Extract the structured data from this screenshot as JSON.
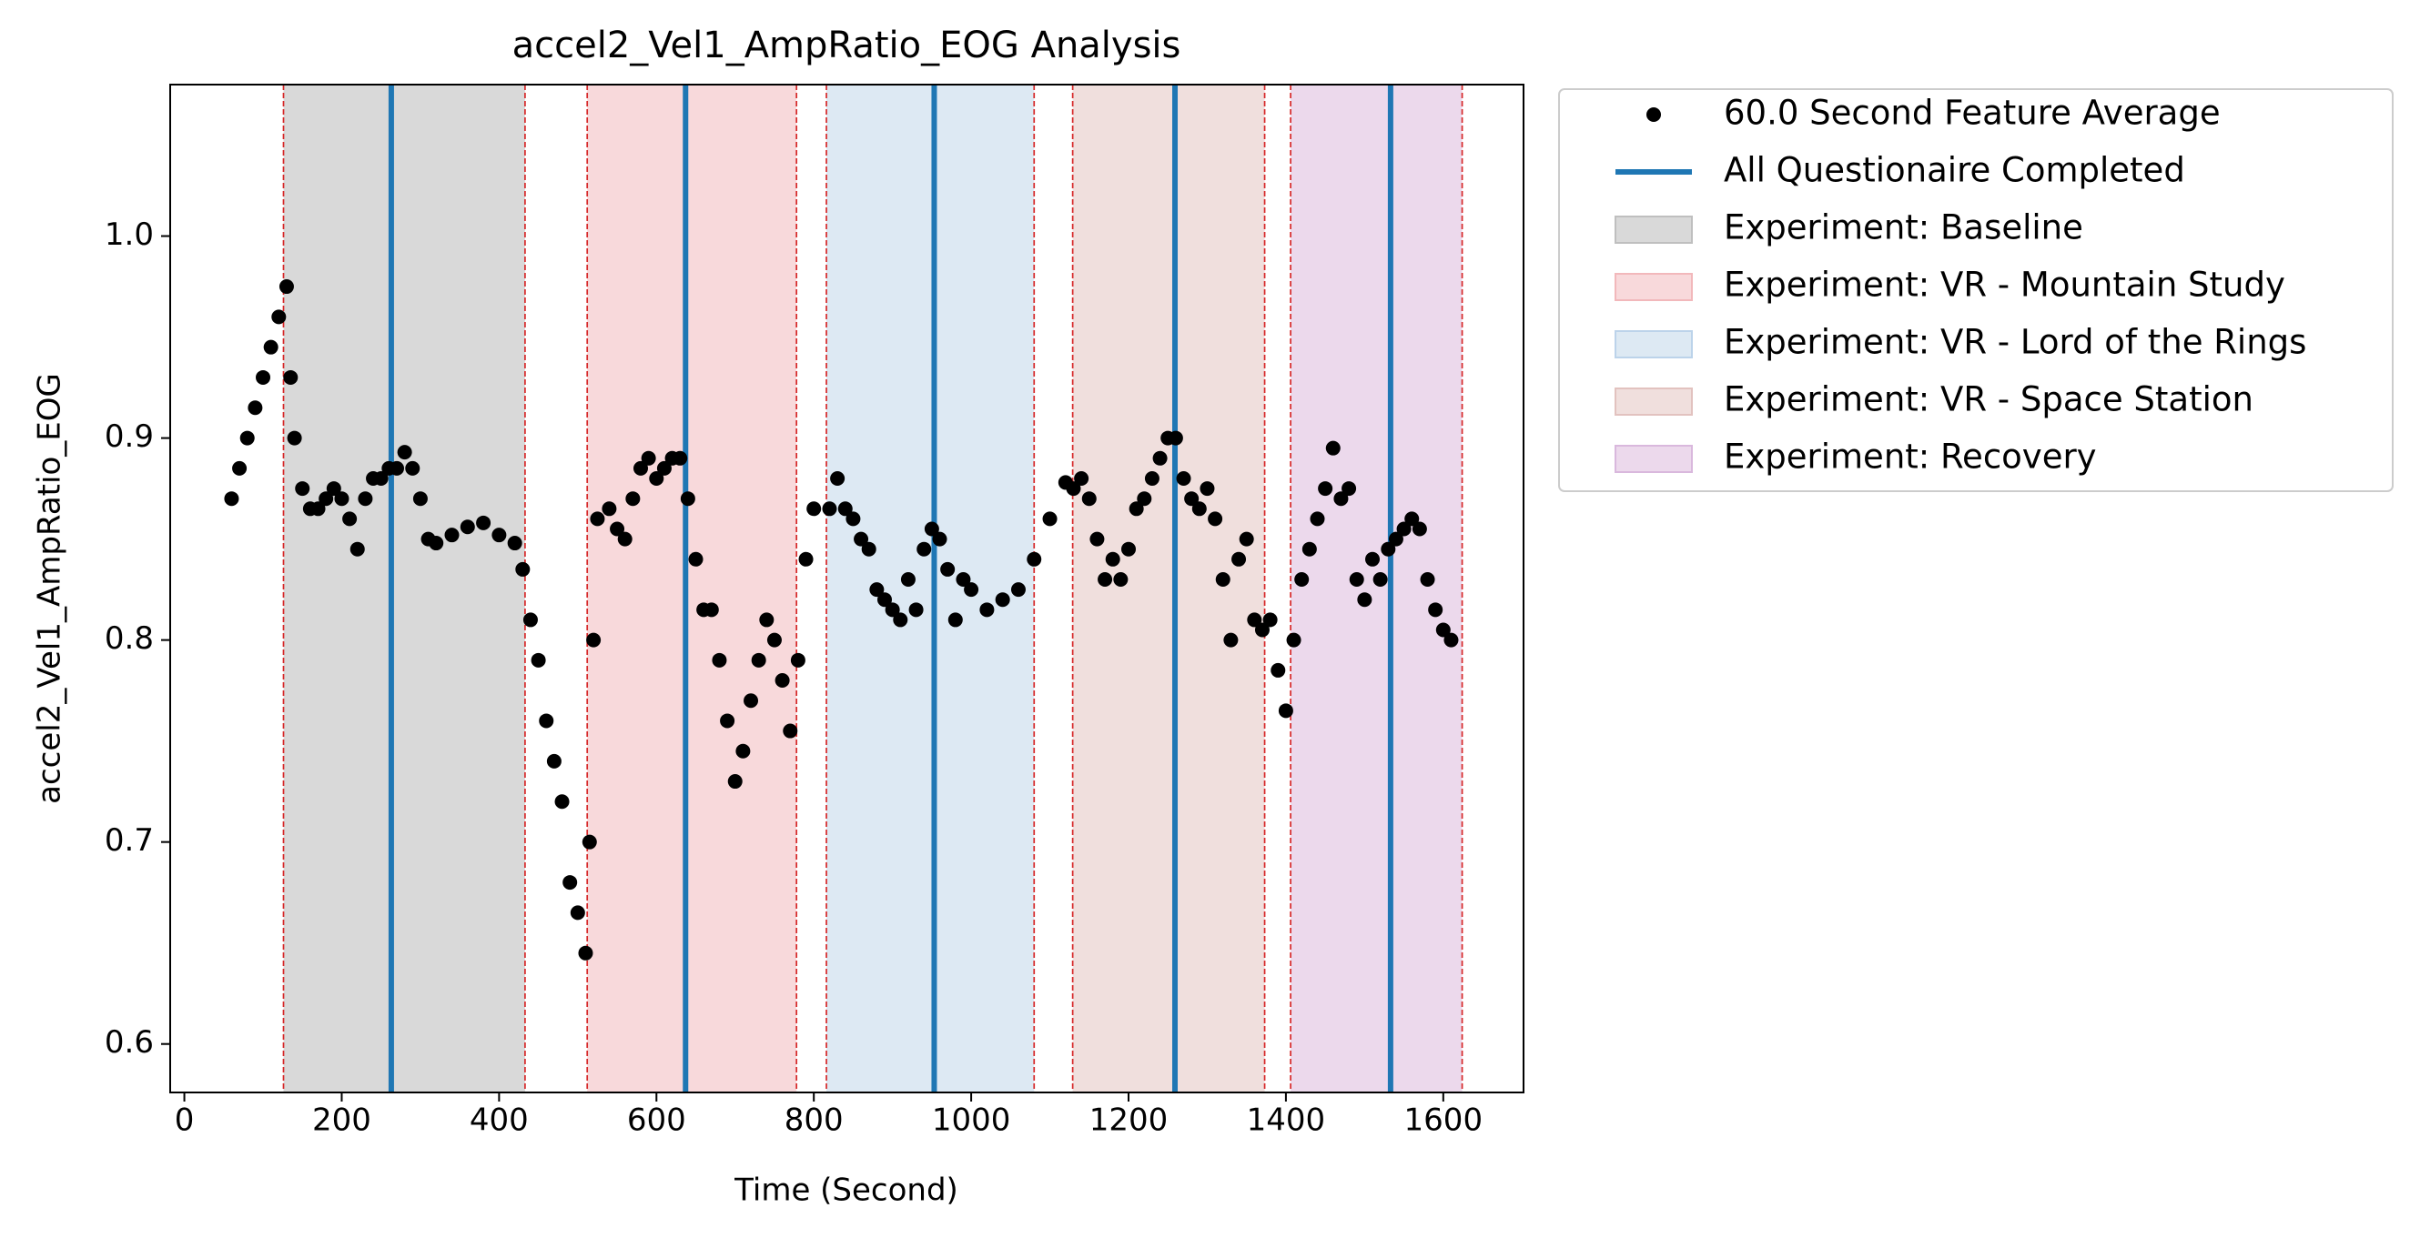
{
  "chart_data": {
    "type": "scatter",
    "title": "accel2_Vel1_AmpRatio_EOG Analysis",
    "x_label": "Time (Second)",
    "y_label": "accel2_Vel1_AmpRatio_EOG",
    "xlim": [
      -18,
      1702
    ],
    "ylim": [
      0.576,
      1.075
    ],
    "xticks": [
      0,
      200,
      400,
      600,
      800,
      1000,
      1200,
      1400,
      1600
    ],
    "yticks": [
      0.6,
      0.7,
      0.8,
      0.9,
      {
        "value": 1,
        "label": "1.0"
      }
    ],
    "series": [
      {
        "name": "60.0 Second Feature Average",
        "color": "#000000",
        "x": [
          60,
          70,
          80,
          90,
          100,
          110,
          120,
          130,
          135,
          140,
          150,
          160,
          170,
          180,
          190,
          200,
          210,
          220,
          230,
          240,
          250,
          260,
          270,
          280,
          290,
          300,
          310,
          320,
          340,
          360,
          380,
          400,
          420,
          430,
          440,
          450,
          460,
          470,
          480,
          490,
          500,
          510,
          515,
          520,
          525,
          540,
          550,
          560,
          570,
          580,
          590,
          600,
          610,
          620,
          630,
          640,
          650,
          660,
          670,
          680,
          690,
          700,
          710,
          720,
          730,
          740,
          750,
          760,
          770,
          780,
          790,
          800,
          820,
          830,
          840,
          850,
          860,
          870,
          880,
          890,
          900,
          910,
          920,
          930,
          940,
          950,
          960,
          970,
          980,
          990,
          1000,
          1020,
          1040,
          1060,
          1080,
          1100,
          1120,
          1130,
          1140,
          1150,
          1160,
          1170,
          1180,
          1190,
          1200,
          1210,
          1220,
          1230,
          1240,
          1250,
          1260,
          1270,
          1280,
          1290,
          1300,
          1310,
          1320,
          1330,
          1340,
          1350,
          1360,
          1370,
          1380,
          1390,
          1400,
          1410,
          1420,
          1430,
          1440,
          1450,
          1460,
          1470,
          1480,
          1490,
          1500,
          1510,
          1520,
          1530,
          1540,
          1550,
          1560,
          1570,
          1580,
          1590,
          1600,
          1610
        ],
        "values": [
          0.87,
          0.885,
          0.9,
          0.915,
          0.93,
          0.945,
          0.96,
          0.975,
          0.93,
          0.9,
          0.875,
          0.865,
          0.865,
          0.87,
          0.875,
          0.87,
          0.86,
          0.845,
          0.87,
          0.88,
          0.88,
          0.885,
          0.885,
          0.893,
          0.885,
          0.87,
          0.85,
          0.848,
          0.852,
          0.856,
          0.858,
          0.852,
          0.848,
          0.835,
          0.81,
          0.79,
          0.76,
          0.74,
          0.72,
          0.68,
          0.665,
          0.645,
          0.7,
          0.8,
          0.86,
          0.865,
          0.855,
          0.85,
          0.87,
          0.885,
          0.89,
          0.88,
          0.885,
          0.89,
          0.89,
          0.87,
          0.84,
          0.815,
          0.815,
          0.79,
          0.76,
          0.73,
          0.745,
          0.77,
          0.79,
          0.81,
          0.8,
          0.78,
          0.755,
          0.79,
          0.84,
          0.865,
          0.865,
          0.88,
          0.865,
          0.86,
          0.85,
          0.845,
          0.825,
          0.82,
          0.815,
          0.81,
          0.83,
          0.815,
          0.845,
          0.855,
          0.85,
          0.835,
          0.81,
          0.83,
          0.825,
          0.815,
          0.82,
          0.825,
          0.84,
          0.86,
          0.878,
          0.875,
          0.88,
          0.87,
          0.85,
          0.83,
          0.84,
          0.83,
          0.845,
          0.865,
          0.87,
          0.88,
          0.89,
          0.9,
          0.9,
          0.88,
          0.87,
          0.865,
          0.875,
          0.86,
          0.83,
          0.8,
          0.84,
          0.85,
          0.81,
          0.805,
          0.81,
          0.785,
          0.765,
          0.8,
          0.83,
          0.845,
          0.86,
          0.875,
          0.895,
          0.87,
          0.875,
          0.83,
          0.82,
          0.84,
          0.83,
          0.845,
          0.85,
          0.855,
          0.86,
          0.855,
          0.83,
          0.815,
          0.805,
          0.8
        ]
      },
      {
        "name": "All Questionaire Completed",
        "color": "#1f77b4",
        "x": [
          263,
          637,
          953,
          1259,
          1533
        ]
      }
    ],
    "spans": [
      {
        "name": "Experiment: Baseline",
        "color": "#d9d9d9",
        "edge": "#bfbfbf",
        "start": 126,
        "end": 433
      },
      {
        "name": "Experiment: VR - Mountain Study",
        "color": "#f8d9db",
        "edge": "#f2b8bb",
        "start": 512,
        "end": 778
      },
      {
        "name": "Experiment: VR - Lord of the Rings",
        "color": "#dde9f3",
        "edge": "#bcd3ea",
        "start": 816,
        "end": 1080
      },
      {
        "name": "Experiment: VR - Space Station",
        "color": "#f0dfdd",
        "edge": "#e2c2bf",
        "start": 1129,
        "end": 1373
      },
      {
        "name": "Experiment: Recovery",
        "color": "#ecd9ec",
        "edge": "#d9b8dd",
        "start": 1406,
        "end": 1624
      }
    ],
    "boundary_color": "#d62728"
  }
}
